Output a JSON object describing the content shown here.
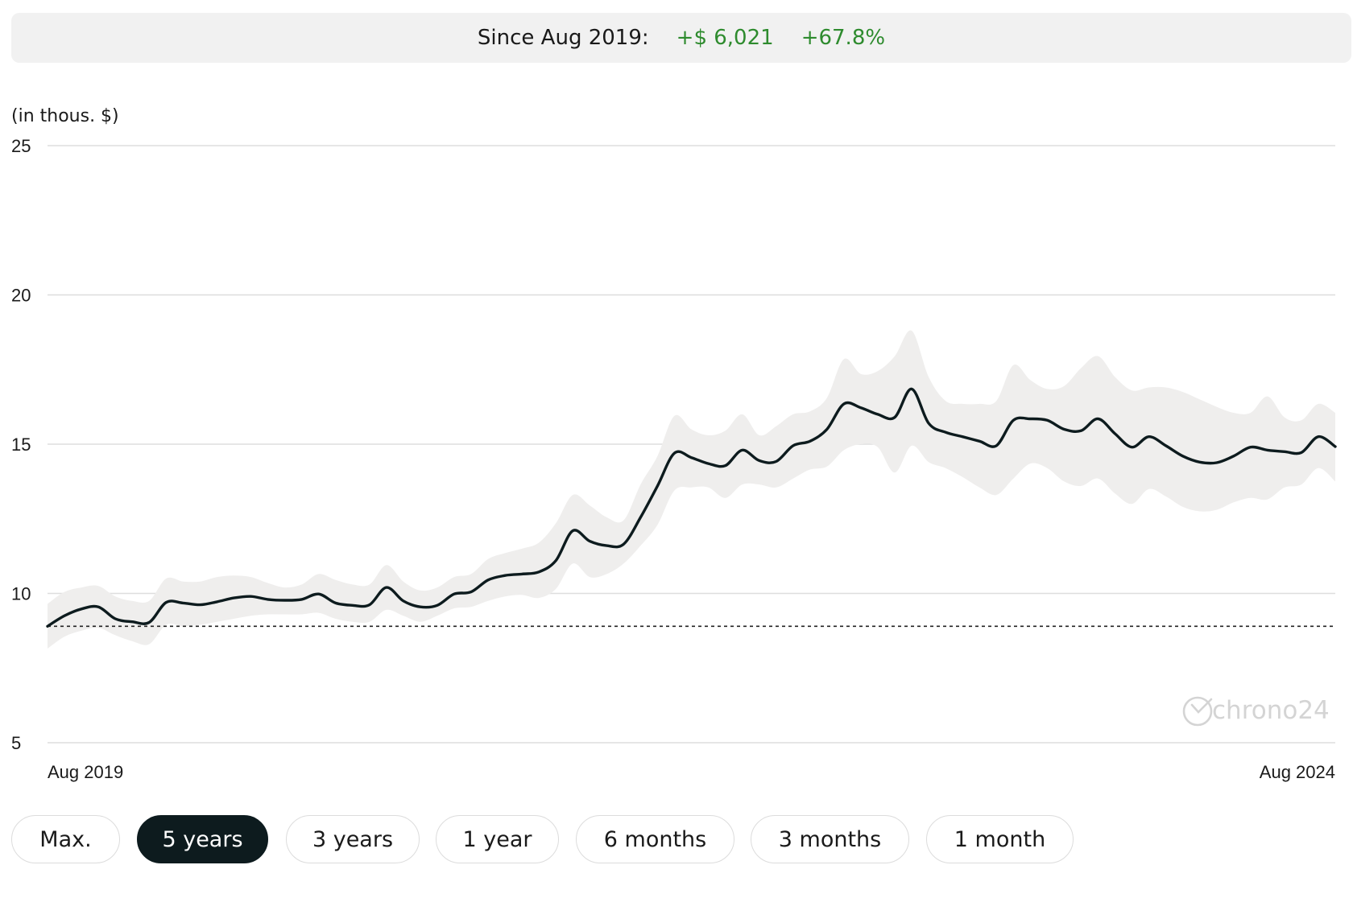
{
  "summary": {
    "label": "Since Aug 2019:",
    "gain": "+$ 6,021",
    "percent": "+67.8%"
  },
  "ranges": [
    {
      "label": "Max.",
      "active": false
    },
    {
      "label": "5 years",
      "active": true
    },
    {
      "label": "3 years",
      "active": false
    },
    {
      "label": "1 year",
      "active": false
    },
    {
      "label": "6 months",
      "active": false
    },
    {
      "label": "3 months",
      "active": false
    },
    {
      "label": "1 month",
      "active": false
    }
  ],
  "watermark": "chrono24",
  "colors": {
    "line": "#0d1b1e",
    "band": "#efeeed",
    "grid": "#dedede",
    "gain": "#2e8b2e",
    "active_button": "#0d1b1e"
  },
  "chart_data": {
    "type": "line",
    "ylabel": "(in thous. $)",
    "ylim": [
      5,
      25
    ],
    "yticks": [
      "5",
      "10",
      "15",
      "20",
      "25"
    ],
    "xlim": [
      "Aug 2019",
      "Aug 2024"
    ],
    "xticks": [
      "Aug 2019",
      "Aug 2024"
    ],
    "reference_line": 8.9,
    "grid": true,
    "series": [
      {
        "values": [
          8.9,
          9.25,
          9.48,
          9.55,
          9.15,
          9.05,
          9.03,
          9.7,
          9.68,
          9.62,
          9.72,
          9.85,
          9.9,
          9.8,
          9.77,
          9.8,
          9.98,
          9.68,
          9.6,
          9.62,
          10.2,
          9.75,
          9.55,
          9.6,
          9.98,
          10.05,
          10.45,
          10.6,
          10.65,
          10.72,
          11.1,
          12.1,
          11.75,
          11.6,
          11.65,
          12.55,
          13.6,
          14.7,
          14.55,
          14.35,
          14.28,
          14.8,
          14.45,
          14.42,
          14.95,
          15.1,
          15.5,
          16.35,
          16.22,
          16.0,
          15.9,
          16.85,
          15.7,
          15.4,
          15.25,
          15.1,
          14.95,
          15.8,
          15.85,
          15.8,
          15.5,
          15.45,
          15.85,
          15.35,
          14.9,
          15.25,
          14.95,
          14.6,
          14.4,
          14.38,
          14.6,
          14.9,
          14.8,
          14.75,
          14.72,
          15.25,
          14.92
        ],
        "upper": [
          9.65,
          10.05,
          10.2,
          10.25,
          9.9,
          9.75,
          9.75,
          10.5,
          10.4,
          10.4,
          10.55,
          10.6,
          10.55,
          10.35,
          10.2,
          10.3,
          10.65,
          10.45,
          10.3,
          10.3,
          10.95,
          10.4,
          10.1,
          10.2,
          10.55,
          10.65,
          11.15,
          11.35,
          11.5,
          11.7,
          12.35,
          13.3,
          12.95,
          12.55,
          12.45,
          13.65,
          14.6,
          15.95,
          15.5,
          15.3,
          15.45,
          16.0,
          15.3,
          15.6,
          16.0,
          16.1,
          16.55,
          17.85,
          17.35,
          17.45,
          17.95,
          18.8,
          17.25,
          16.45,
          16.35,
          16.35,
          16.45,
          17.65,
          17.15,
          16.85,
          16.95,
          17.55,
          17.95,
          17.25,
          16.8,
          16.9,
          16.9,
          16.75,
          16.5,
          16.25,
          16.05,
          16.05,
          16.6,
          15.9,
          15.8,
          16.35,
          16.05
        ],
        "lower": [
          8.15,
          8.55,
          8.75,
          8.85,
          8.6,
          8.4,
          8.3,
          8.95,
          8.9,
          8.95,
          9.05,
          9.15,
          9.25,
          9.3,
          9.3,
          9.3,
          9.35,
          9.15,
          9.05,
          9.05,
          9.45,
          9.25,
          9.05,
          9.25,
          9.5,
          9.55,
          9.75,
          9.9,
          9.95,
          9.85,
          10.15,
          11.0,
          10.55,
          10.65,
          11.0,
          11.6,
          12.3,
          13.45,
          13.55,
          13.55,
          13.2,
          13.65,
          13.65,
          13.55,
          13.85,
          14.15,
          14.25,
          14.8,
          15.0,
          14.9,
          14.05,
          14.95,
          14.4,
          14.2,
          13.9,
          13.55,
          13.3,
          13.85,
          14.35,
          14.2,
          13.75,
          13.6,
          13.85,
          13.35,
          13.0,
          13.5,
          13.25,
          12.9,
          12.75,
          12.8,
          13.05,
          13.2,
          13.15,
          13.55,
          13.65,
          14.2,
          13.75
        ]
      }
    ]
  }
}
